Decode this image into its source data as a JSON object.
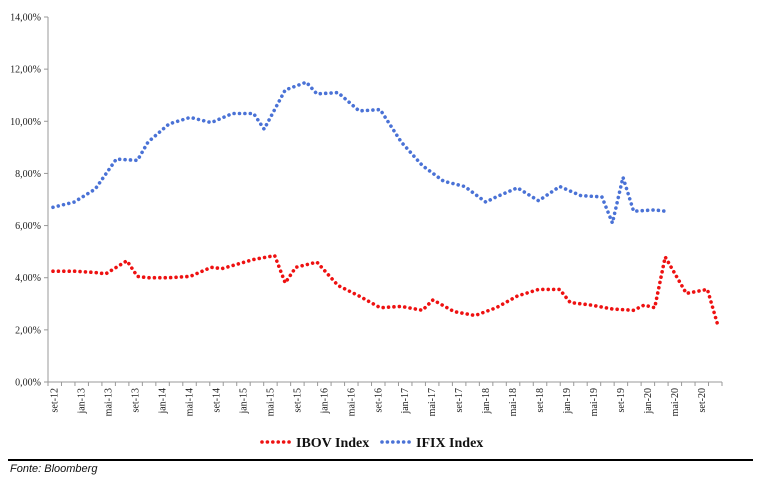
{
  "chart_data": {
    "type": "line",
    "title": "",
    "xlabel": "",
    "ylabel": "",
    "ylim": [
      0,
      14
    ],
    "yticks": [
      0,
      2,
      4,
      6,
      8,
      10,
      12,
      14
    ],
    "ytick_labels": [
      "0,00%",
      "2,00%",
      "4,00%",
      "6,00%",
      "8,00%",
      "10,00%",
      "12,00%",
      "14,00%"
    ],
    "xtick_labels": [
      "set-12",
      "jan-13",
      "mai-13",
      "set-13",
      "jan-14",
      "mai-14",
      "set-14",
      "jan-15",
      "mai-15",
      "set-15",
      "jan-16",
      "mai-16",
      "set-16",
      "jan-17",
      "mai-17",
      "set-17",
      "jan-18",
      "mai-18",
      "set-18",
      "jan-19",
      "mai-19",
      "set-19",
      "jan-20",
      "mai-20",
      "set-20"
    ],
    "n_points": 50,
    "legend_position": "bottom-center",
    "series": [
      {
        "name": "IBOV Index",
        "color": "#ee1111",
        "values": [
          4.25,
          4.25,
          4.2,
          4.15,
          4.65,
          4.05,
          4.0,
          4.0,
          4.05,
          4.4,
          4.35,
          4.7,
          4.85,
          3.8,
          4.4,
          4.6,
          3.7,
          3.3,
          2.85,
          2.9,
          2.75,
          3.15,
          2.7,
          2.55,
          2.85,
          3.3,
          3.55,
          3.55,
          3.05,
          2.95,
          2.8,
          2.75,
          2.95,
          2.85,
          4.8,
          3.4,
          3.55,
          2.15
        ]
      },
      {
        "name": "IFIX Index",
        "color": "#4a72d6",
        "values": [
          6.7,
          6.9,
          7.4,
          8.55,
          8.5,
          9.2,
          9.9,
          10.15,
          9.95,
          10.3,
          10.3,
          9.7,
          11.2,
          11.5,
          11.05,
          11.1,
          10.4,
          10.45,
          9.2,
          8.3,
          7.7,
          7.5,
          6.9,
          7.1,
          7.45,
          6.95,
          7.5,
          7.15,
          7.1,
          6.1,
          7.85,
          6.55,
          6.6,
          6.55
        ]
      }
    ],
    "series_x": [
      [
        0,
        2,
        4,
        5,
        7,
        8,
        9,
        11,
        13,
        15,
        16,
        19,
        21,
        22,
        23,
        25,
        27,
        29,
        31,
        33,
        35,
        36,
        38,
        40,
        42,
        44,
        46,
        48,
        49,
        51,
        53,
        55,
        56,
        57,
        58,
        60,
        62,
        63
      ],
      [
        0,
        2,
        4,
        6,
        8,
        9,
        11,
        13,
        15,
        17,
        19,
        20,
        22,
        24,
        25,
        27,
        29,
        31,
        33,
        35,
        37,
        39,
        41,
        42,
        44,
        46,
        48,
        50,
        52,
        53,
        54,
        55,
        57,
        58
      ]
    ],
    "n_x": 64
  },
  "source": "Fonte: Bloomberg"
}
